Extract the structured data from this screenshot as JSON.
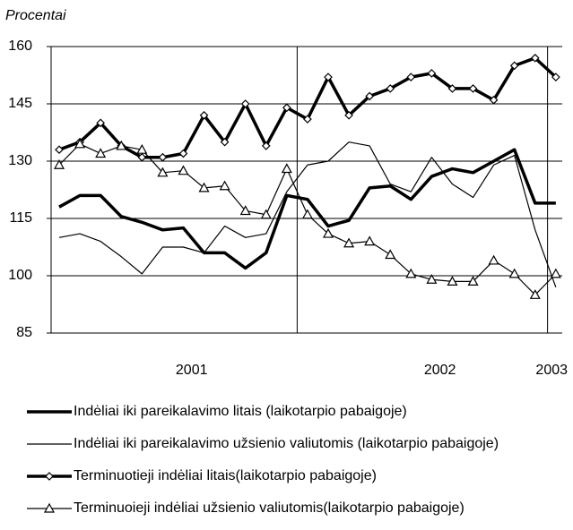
{
  "chart_data": {
    "type": "line",
    "y_axis_label": "Procentai",
    "x": [
      0,
      1,
      2,
      3,
      4,
      5,
      6,
      7,
      8,
      9,
      10,
      11,
      12,
      13,
      14,
      15,
      16,
      17,
      18,
      19,
      20,
      21,
      22,
      23,
      24
    ],
    "xlim": [
      -0.39,
      24.31
    ],
    "xticks": [
      {
        "value": 6.4,
        "label": "2001"
      },
      {
        "value": 18.4,
        "label": "2002"
      },
      {
        "value": 23.8,
        "label": "2003"
      }
    ],
    "xgrid": [
      11.5,
      23.6
    ],
    "ylim": [
      85,
      160
    ],
    "yticks": [
      85,
      100,
      115,
      130,
      145,
      160
    ],
    "grid": true,
    "series": [
      {
        "name": "Indėliai iki pareikalavimo litais (laikotarpio pabaigoje)",
        "color": "#000000",
        "width": 3.5,
        "marker": "none",
        "values": [
          118,
          121,
          121,
          115.5,
          114,
          112,
          112.5,
          106,
          106,
          102,
          106,
          121,
          120,
          113,
          114.5,
          123,
          123.5,
          120,
          126,
          128,
          127,
          130,
          133,
          119,
          119
        ]
      },
      {
        "name": "Indėliai iki pareikalavimo užsienio valiutomis (laikotarpio pabaigoje)",
        "color": "#000000",
        "width": 1.2,
        "marker": "none",
        "values": [
          110,
          111,
          109,
          105,
          100.5,
          107.5,
          107.5,
          106,
          113,
          110,
          111,
          122,
          129,
          130,
          135,
          134,
          124,
          122,
          131,
          124,
          120.5,
          129,
          131.5,
          112,
          97
        ]
      },
      {
        "name": "Terminuotieji indėliai litais(laikotarpio pabaigoje)",
        "color": "#000000",
        "width": 3.5,
        "marker": "diamond",
        "values": [
          133,
          135,
          140,
          134,
          131,
          131,
          132,
          142,
          135,
          145,
          134,
          144,
          141,
          152,
          142,
          147,
          149,
          152,
          153,
          149,
          149,
          146,
          155,
          157,
          152
        ]
      },
      {
        "name": "Terminuoieji indėliai užsienio valiutomis(laikotarpio pabaigoje)",
        "color": "#000000",
        "width": 1.2,
        "marker": "triangle",
        "values": [
          129,
          134.5,
          132,
          134,
          133,
          127,
          127.5,
          123,
          123.5,
          117,
          116,
          128,
          116,
          111,
          108.5,
          109,
          105.5,
          100.5,
          99,
          98.5,
          98.5,
          104,
          100.5,
          95,
          100.5
        ]
      }
    ]
  }
}
